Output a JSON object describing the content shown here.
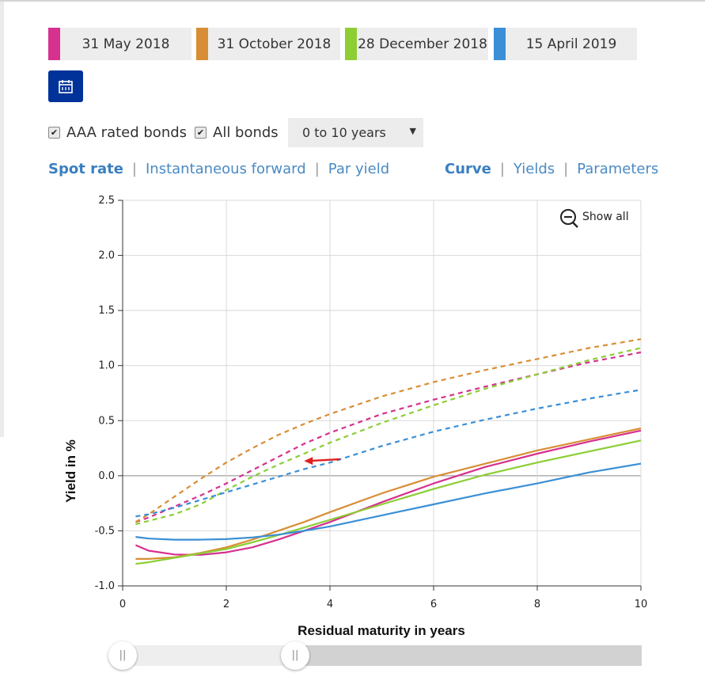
{
  "dates": [
    {
      "label": "31 May 2018",
      "color": "#d6318f"
    },
    {
      "label": "31 October 2018",
      "color": "#d88e35"
    },
    {
      "label": "28 December 2018",
      "color": "#8cce34"
    },
    {
      "label": "15 April 2019",
      "color": "#3a8fd6"
    }
  ],
  "calendar": {
    "icon": "calendar-icon"
  },
  "filters": {
    "aaa_label": "AAA rated bonds",
    "all_label": "All bonds",
    "range_select": "0 to 10 years",
    "check_glyph": "✔"
  },
  "nav": {
    "spot": "Spot rate",
    "instantaneous": "Instantaneous forward",
    "par": "Par yield",
    "curve": "Curve",
    "yields": "Yields",
    "parameters": "Parameters",
    "separator": "|"
  },
  "chart": {
    "show_all": "Show all"
  },
  "chart_data": {
    "type": "line",
    "xlabel": "Residual maturity in years",
    "ylabel": "Yield in %",
    "xlim": [
      0,
      10
    ],
    "ylim": [
      -1.0,
      2.5
    ],
    "x_ticks": [
      "0",
      "2",
      "4",
      "6",
      "8",
      "10"
    ],
    "y_ticks": [
      "-1.0",
      "-0.5",
      "0.0",
      "0.5",
      "1.0",
      "1.5",
      "2.0",
      "2.5"
    ],
    "grid": true,
    "series": [
      {
        "name": "31 May 2018 spot",
        "color": "#d6318f",
        "style": "solid",
        "x": [
          0.25,
          0.5,
          1,
          1.5,
          2,
          2.5,
          3,
          3.5,
          4,
          5,
          6,
          7,
          8,
          9,
          10
        ],
        "y": [
          -0.63,
          -0.68,
          -0.715,
          -0.718,
          -0.695,
          -0.65,
          -0.58,
          -0.5,
          -0.42,
          -0.24,
          -0.07,
          0.08,
          0.2,
          0.31,
          0.41
        ]
      },
      {
        "name": "31 Oct 2018 spot",
        "color": "#d88e35",
        "style": "solid",
        "x": [
          0.25,
          0.5,
          1,
          1.5,
          2,
          2.5,
          3,
          3.5,
          4,
          5,
          6,
          7,
          8,
          9,
          10
        ],
        "y": [
          -0.755,
          -0.755,
          -0.74,
          -0.7,
          -0.65,
          -0.58,
          -0.5,
          -0.42,
          -0.33,
          -0.16,
          -0.01,
          0.11,
          0.23,
          0.33,
          0.43
        ]
      },
      {
        "name": "28 Dec 2018 spot",
        "color": "#8cce34",
        "style": "solid",
        "x": [
          0.25,
          0.5,
          1,
          1.5,
          2,
          2.5,
          3,
          3.5,
          4,
          5,
          6,
          7,
          8,
          9,
          10
        ],
        "y": [
          -0.8,
          -0.785,
          -0.745,
          -0.705,
          -0.665,
          -0.605,
          -0.54,
          -0.47,
          -0.4,
          -0.26,
          -0.12,
          0.01,
          0.12,
          0.22,
          0.32
        ]
      },
      {
        "name": "15 Apr 2019 spot",
        "color": "#3a8fd6",
        "style": "solid",
        "x": [
          0.25,
          0.5,
          1,
          1.5,
          2,
          2.5,
          3,
          3.5,
          4,
          5,
          6,
          7,
          8,
          9,
          10
        ],
        "y": [
          -0.555,
          -0.57,
          -0.58,
          -0.58,
          -0.575,
          -0.56,
          -0.535,
          -0.5,
          -0.46,
          -0.36,
          -0.26,
          -0.16,
          -0.07,
          0.03,
          0.11
        ]
      },
      {
        "name": "31 May 2018 forward",
        "color": "#d6318f",
        "style": "dashed",
        "x": [
          0.25,
          0.5,
          1,
          1.5,
          2,
          2.5,
          3,
          3.5,
          4,
          5,
          6,
          7,
          8,
          9,
          10
        ],
        "y": [
          -0.42,
          -0.38,
          -0.28,
          -0.18,
          -0.07,
          0.05,
          0.17,
          0.29,
          0.39,
          0.56,
          0.69,
          0.81,
          0.92,
          1.03,
          1.12
        ]
      },
      {
        "name": "31 Oct 2018 forward",
        "color": "#d88e35",
        "style": "dashed",
        "x": [
          0.25,
          0.5,
          1,
          1.5,
          2,
          2.5,
          3,
          3.5,
          4,
          5,
          6,
          7,
          8,
          9,
          10
        ],
        "y": [
          -0.42,
          -0.35,
          -0.19,
          -0.03,
          0.12,
          0.25,
          0.37,
          0.47,
          0.56,
          0.72,
          0.85,
          0.96,
          1.06,
          1.16,
          1.24
        ]
      },
      {
        "name": "28 Dec 2018 forward",
        "color": "#8cce34",
        "style": "dashed",
        "x": [
          0.25,
          0.5,
          1,
          1.5,
          2,
          2.5,
          3,
          3.5,
          4,
          5,
          6,
          7,
          8,
          9,
          10
        ],
        "y": [
          -0.44,
          -0.41,
          -0.35,
          -0.26,
          -0.13,
          -0.01,
          0.1,
          0.2,
          0.3,
          0.48,
          0.64,
          0.79,
          0.92,
          1.05,
          1.16
        ]
      },
      {
        "name": "15 Apr 2019 forward",
        "color": "#3a8fd6",
        "style": "dashed",
        "x": [
          0.25,
          0.5,
          1,
          1.5,
          2,
          2.5,
          3,
          3.5,
          4,
          5,
          6,
          7,
          8,
          9,
          10
        ],
        "y": [
          -0.37,
          -0.35,
          -0.29,
          -0.22,
          -0.15,
          -0.08,
          -0.01,
          0.06,
          0.12,
          0.27,
          0.4,
          0.51,
          0.61,
          0.7,
          0.78
        ]
      }
    ],
    "annotations": [
      {
        "type": "arrow",
        "color": "#e02020",
        "from": [
          4.2,
          0.15
        ],
        "to": [
          3.5,
          0.135
        ]
      }
    ]
  },
  "slider": {
    "left_grip": "||",
    "right_grip": "||"
  }
}
